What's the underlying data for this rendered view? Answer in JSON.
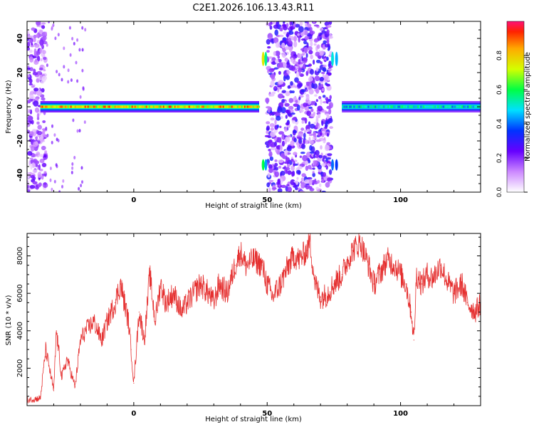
{
  "title": "C2E1.2026.106.13.43.R11",
  "colors": {
    "snr_line": "#e53030",
    "axis": "#000000"
  },
  "chart_data": [
    {
      "type": "heatmap",
      "xlabel": "Height of straight line (km)",
      "ylabel": "Frequency (Hz)",
      "xlim": [
        -40,
        130
      ],
      "ylim": [
        -50,
        50
      ],
      "x_ticks": [
        0,
        50,
        100
      ],
      "y_ticks": [
        -40,
        -20,
        0,
        20,
        40
      ],
      "colorbar": {
        "label": "Normalized spectral amplitude",
        "range": [
          0,
          1
        ],
        "ticks": [
          0.0,
          0.2,
          0.4,
          0.6,
          0.8
        ],
        "tick_labels": [
          "0.0",
          "0.2",
          "0.4",
          "0.6",
          "0.8"
        ]
      },
      "ridge_line": {
        "frequency_hz": 0,
        "segments": [
          {
            "x": [
              -35,
              47
            ],
            "amplitude": 0.9
          },
          {
            "x": [
              78,
              130
            ],
            "amplitude": 0.55
          }
        ]
      },
      "noise_regions": [
        {
          "x": [
            -40,
            -33
          ],
          "amplitude": 0.2
        },
        {
          "x": [
            50,
            74
          ],
          "amplitude": 0.25
        }
      ]
    },
    {
      "type": "line",
      "xlabel": "Height of straight line (km)",
      "ylabel": "SNR (10 * v/v)",
      "xlim": [
        -40,
        130
      ],
      "ylim": [
        0,
        9200
      ],
      "x_ticks": [
        0,
        50,
        100
      ],
      "y_ticks": [
        2000,
        4000,
        6000,
        8000
      ],
      "series": [
        {
          "x": [
            -40,
            -35,
            -33,
            -30,
            -29,
            -27,
            -25,
            -22,
            -20,
            -18,
            -15,
            -12,
            -10,
            -7,
            -5,
            -2,
            -1,
            0,
            2,
            4,
            6,
            8,
            10,
            12,
            15,
            18,
            20,
            25,
            28,
            30,
            32,
            35,
            38,
            40,
            42,
            45,
            48,
            50,
            52,
            55,
            58,
            60,
            62,
            65,
            66,
            68,
            70,
            72,
            75,
            78,
            80,
            82,
            85,
            88,
            90,
            92,
            95,
            98,
            100,
            102,
            104,
            105,
            106,
            108,
            110,
            112,
            115,
            118,
            120,
            123,
            125,
            128,
            130
          ],
          "y": [
            300,
            400,
            3000,
            800,
            4000,
            1500,
            2500,
            1000,
            3500,
            4000,
            4500,
            3500,
            4500,
            5500,
            6500,
            4500,
            3000,
            1200,
            5000,
            3500,
            7000,
            4500,
            6500,
            5500,
            6000,
            5000,
            5500,
            6500,
            6000,
            5500,
            6500,
            6000,
            7500,
            8200,
            7500,
            7800,
            7500,
            6500,
            5800,
            6500,
            7500,
            8000,
            7800,
            8300,
            8800,
            6500,
            5800,
            5900,
            6500,
            7000,
            7700,
            8300,
            8700,
            7500,
            6500,
            7000,
            7800,
            7500,
            7000,
            6500,
            5000,
            3500,
            7000,
            6500,
            7000,
            6800,
            7500,
            6500,
            6000,
            6500,
            5500,
            5000,
            5500
          ]
        }
      ]
    }
  ]
}
